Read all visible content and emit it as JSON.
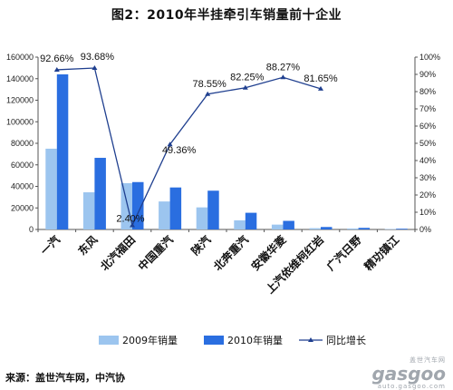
{
  "title": "图2：2010年半挂牵引车销量前十企业",
  "source": "来源：盖世汽车网，中汽协",
  "watermark": {
    "line1": "盖世汽车网",
    "brand": "gasgoo",
    "line2": "auto.gasgoo.com"
  },
  "colors": {
    "bar2009": "#9cc5ef",
    "bar2010": "#2a6ee0",
    "line": "#1f3f8f"
  },
  "chart_data": {
    "type": "bar",
    "categories": [
      "一汽",
      "东风",
      "北汽福田",
      "中国重汽",
      "陕汽",
      "北奔重汽",
      "安徽华菱",
      "上汽依维柯红岩",
      "广汽日野",
      "精功镇江"
    ],
    "series": [
      {
        "name": "2009年销量",
        "type": "bar",
        "values": [
          75000,
          34500,
          43000,
          26000,
          20500,
          8500,
          4500,
          1200,
          900,
          400
        ]
      },
      {
        "name": "2010年销量",
        "type": "bar",
        "values": [
          144000,
          66500,
          44000,
          39000,
          36000,
          15500,
          8000,
          2300,
          1500,
          700
        ]
      },
      {
        "name": "同比增长",
        "type": "line",
        "axis": "right",
        "values": [
          92.66,
          93.68,
          2.4,
          49.36,
          78.55,
          82.25,
          88.27,
          81.65,
          null,
          null
        ],
        "labels": [
          "92.66%",
          "93.68%",
          "2.40%",
          "49.36%",
          "78.55%",
          "82.25%",
          "88.27%",
          "81.65%",
          "",
          ""
        ]
      }
    ],
    "yleft": {
      "ylim": [
        0,
        160000
      ],
      "ticks": [
        "0",
        "20000",
        "40000",
        "60000",
        "80000",
        "100000",
        "120000",
        "140000",
        "160000"
      ]
    },
    "yright": {
      "ylim": [
        0,
        100
      ],
      "ticks": [
        "0%",
        "10%",
        "20%",
        "30%",
        "40%",
        "50%",
        "60%",
        "70%",
        "80%",
        "90%",
        "100%"
      ]
    },
    "legend": {
      "position": "bottom",
      "entries": [
        "2009年销量",
        "2010年销量",
        "同比增长"
      ]
    },
    "grid": false
  }
}
